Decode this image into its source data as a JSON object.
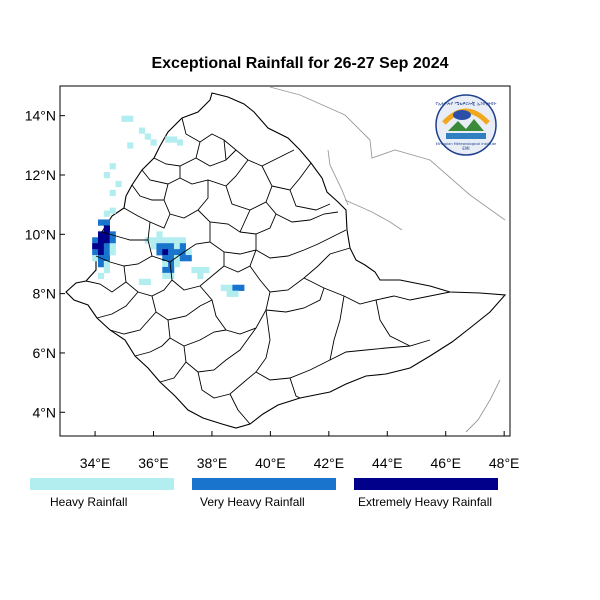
{
  "title": "Exceptional Rainfall for 26-27 Sep 2024",
  "logo": {
    "name": "Ethiopian Meteorological Institute",
    "amharic": "የኢትዮጵያ ሜቴዎሮሎጂ ኢንስቲትዩት",
    "abbrev": "EMI"
  },
  "axes": {
    "x_ticks": [
      "34°E",
      "36°E",
      "38°E",
      "40°E",
      "42°E",
      "44°E",
      "46°E",
      "48°E"
    ],
    "y_ticks": [
      "14°N",
      "12°N",
      "10°N",
      "8°N",
      "6°N",
      "4°N"
    ],
    "lon_range": [
      32.8,
      48.2
    ],
    "lat_range": [
      3.2,
      15.0
    ]
  },
  "legend": [
    {
      "label": "Heavy Rainfall",
      "color": "#b2eef0"
    },
    {
      "label": "Very Heavy Rainfall",
      "color": "#1874cd"
    },
    {
      "label": "Extremely Heavy Rainfall",
      "color": "#00008b"
    }
  ],
  "rainfall_cells": [
    {
      "lon": 35.0,
      "lat": 13.9,
      "class": 1
    },
    {
      "lon": 35.2,
      "lat": 13.9,
      "class": 1
    },
    {
      "lon": 35.6,
      "lat": 13.5,
      "class": 1
    },
    {
      "lon": 35.8,
      "lat": 13.3,
      "class": 1
    },
    {
      "lon": 36.0,
      "lat": 13.1,
      "class": 1
    },
    {
      "lon": 36.5,
      "lat": 13.2,
      "class": 1
    },
    {
      "lon": 36.7,
      "lat": 13.2,
      "class": 1
    },
    {
      "lon": 35.2,
      "lat": 13.0,
      "class": 1
    },
    {
      "lon": 36.9,
      "lat": 13.1,
      "class": 1
    },
    {
      "lon": 34.6,
      "lat": 12.3,
      "class": 1
    },
    {
      "lon": 34.4,
      "lat": 12.0,
      "class": 1
    },
    {
      "lon": 34.8,
      "lat": 11.7,
      "class": 1
    },
    {
      "lon": 34.6,
      "lat": 11.4,
      "class": 1
    },
    {
      "lon": 34.4,
      "lat": 10.7,
      "class": 1
    },
    {
      "lon": 34.6,
      "lat": 10.8,
      "class": 1
    },
    {
      "lon": 34.2,
      "lat": 10.4,
      "class": 2
    },
    {
      "lon": 34.4,
      "lat": 10.4,
      "class": 2
    },
    {
      "lon": 34.4,
      "lat": 10.2,
      "class": 3
    },
    {
      "lon": 34.2,
      "lat": 10.0,
      "class": 3
    },
    {
      "lon": 34.4,
      "lat": 10.0,
      "class": 3
    },
    {
      "lon": 34.6,
      "lat": 10.0,
      "class": 2
    },
    {
      "lon": 34.0,
      "lat": 9.8,
      "class": 2
    },
    {
      "lon": 34.2,
      "lat": 9.8,
      "class": 3
    },
    {
      "lon": 34.4,
      "lat": 9.8,
      "class": 3
    },
    {
      "lon": 34.6,
      "lat": 9.8,
      "class": 2
    },
    {
      "lon": 34.0,
      "lat": 9.6,
      "class": 3
    },
    {
      "lon": 34.2,
      "lat": 9.6,
      "class": 3
    },
    {
      "lon": 34.4,
      "lat": 9.6,
      "class": 2
    },
    {
      "lon": 34.6,
      "lat": 9.6,
      "class": 1
    },
    {
      "lon": 34.0,
      "lat": 9.4,
      "class": 2
    },
    {
      "lon": 34.2,
      "lat": 9.4,
      "class": 3
    },
    {
      "lon": 34.4,
      "lat": 9.4,
      "class": 2
    },
    {
      "lon": 34.6,
      "lat": 9.4,
      "class": 1
    },
    {
      "lon": 34.0,
      "lat": 9.2,
      "class": 1
    },
    {
      "lon": 34.2,
      "lat": 9.2,
      "class": 2
    },
    {
      "lon": 34.4,
      "lat": 9.2,
      "class": 2
    },
    {
      "lon": 34.2,
      "lat": 9.0,
      "class": 2
    },
    {
      "lon": 34.4,
      "lat": 9.0,
      "class": 1
    },
    {
      "lon": 34.4,
      "lat": 8.8,
      "class": 1
    },
    {
      "lon": 34.2,
      "lat": 8.6,
      "class": 1
    },
    {
      "lon": 35.8,
      "lat": 9.8,
      "class": 1
    },
    {
      "lon": 36.0,
      "lat": 9.8,
      "class": 1
    },
    {
      "lon": 36.2,
      "lat": 9.8,
      "class": 1
    },
    {
      "lon": 36.4,
      "lat": 9.8,
      "class": 1
    },
    {
      "lon": 36.6,
      "lat": 9.8,
      "class": 1
    },
    {
      "lon": 36.8,
      "lat": 9.8,
      "class": 1
    },
    {
      "lon": 37.0,
      "lat": 9.8,
      "class": 1
    },
    {
      "lon": 36.2,
      "lat": 10.0,
      "class": 1
    },
    {
      "lon": 36.0,
      "lat": 9.6,
      "class": 1
    },
    {
      "lon": 36.2,
      "lat": 9.6,
      "class": 2
    },
    {
      "lon": 36.4,
      "lat": 9.6,
      "class": 2
    },
    {
      "lon": 36.6,
      "lat": 9.6,
      "class": 2
    },
    {
      "lon": 36.8,
      "lat": 9.6,
      "class": 1
    },
    {
      "lon": 37.0,
      "lat": 9.6,
      "class": 2
    },
    {
      "lon": 36.2,
      "lat": 9.4,
      "class": 2
    },
    {
      "lon": 36.4,
      "lat": 9.4,
      "class": 3
    },
    {
      "lon": 36.6,
      "lat": 9.4,
      "class": 2
    },
    {
      "lon": 36.8,
      "lat": 9.4,
      "class": 2
    },
    {
      "lon": 37.0,
      "lat": 9.4,
      "class": 2
    },
    {
      "lon": 37.2,
      "lat": 9.4,
      "class": 1
    },
    {
      "lon": 36.4,
      "lat": 9.2,
      "class": 2
    },
    {
      "lon": 36.6,
      "lat": 9.2,
      "class": 2
    },
    {
      "lon": 36.8,
      "lat": 9.2,
      "class": 1
    },
    {
      "lon": 37.0,
      "lat": 9.2,
      "class": 2
    },
    {
      "lon": 37.2,
      "lat": 9.2,
      "class": 2
    },
    {
      "lon": 36.4,
      "lat": 9.0,
      "class": 1
    },
    {
      "lon": 36.6,
      "lat": 9.0,
      "class": 2
    },
    {
      "lon": 36.8,
      "lat": 9.0,
      "class": 1
    },
    {
      "lon": 36.4,
      "lat": 8.8,
      "class": 2
    },
    {
      "lon": 36.6,
      "lat": 8.8,
      "class": 2
    },
    {
      "lon": 36.4,
      "lat": 8.6,
      "class": 1
    },
    {
      "lon": 36.6,
      "lat": 8.6,
      "class": 1
    },
    {
      "lon": 35.6,
      "lat": 8.4,
      "class": 1
    },
    {
      "lon": 35.8,
      "lat": 8.4,
      "class": 1
    },
    {
      "lon": 37.4,
      "lat": 8.8,
      "class": 1
    },
    {
      "lon": 37.6,
      "lat": 8.8,
      "class": 1
    },
    {
      "lon": 37.8,
      "lat": 8.8,
      "class": 1
    },
    {
      "lon": 37.6,
      "lat": 8.6,
      "class": 1
    },
    {
      "lon": 38.4,
      "lat": 8.2,
      "class": 1
    },
    {
      "lon": 38.6,
      "lat": 8.2,
      "class": 1
    },
    {
      "lon": 38.8,
      "lat": 8.2,
      "class": 2
    },
    {
      "lon": 39.0,
      "lat": 8.2,
      "class": 2
    },
    {
      "lon": 38.8,
      "lat": 8.0,
      "class": 1
    },
    {
      "lon": 38.6,
      "lat": 8.0,
      "class": 1
    }
  ]
}
